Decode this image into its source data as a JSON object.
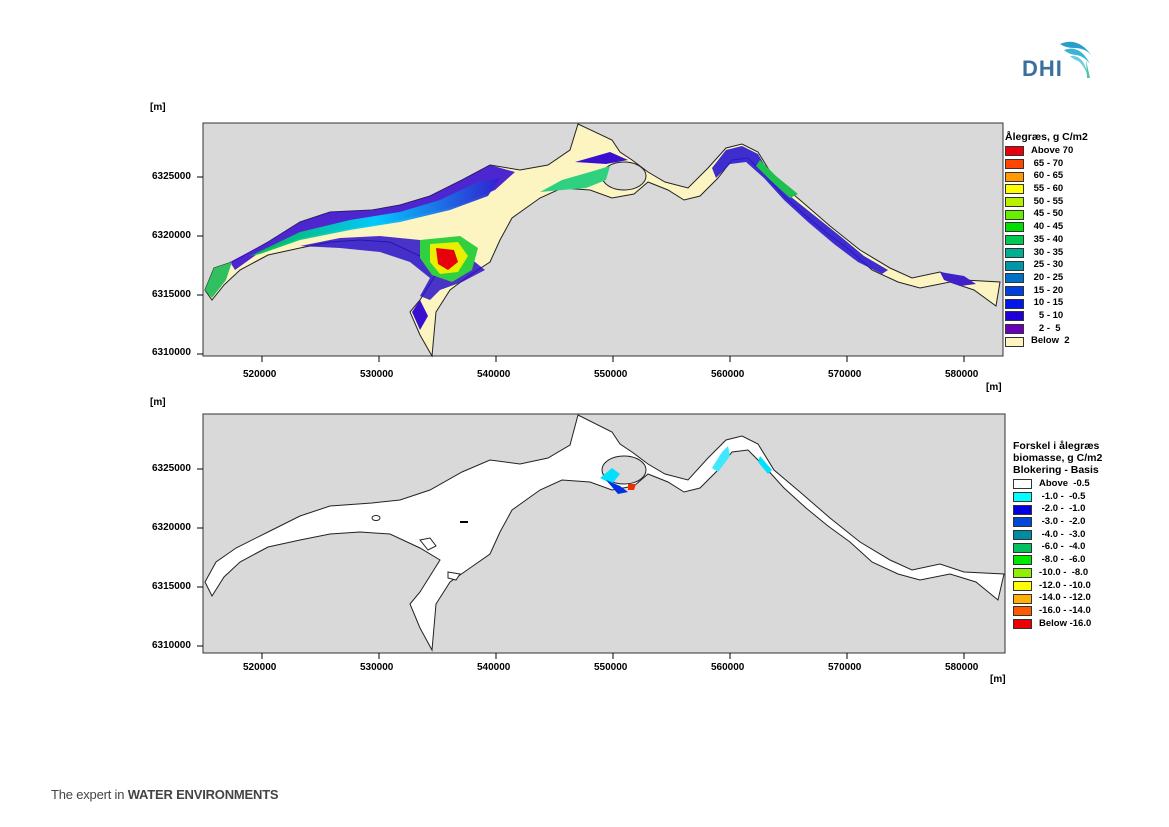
{
  "logo": {
    "text": "DHI"
  },
  "footer": {
    "prefix": "The expert in ",
    "emphasis": "WATER ENVIRONMENTS"
  },
  "map_top": {
    "y_unit": "[m]",
    "x_unit": "[m]",
    "y_ticks": [
      "6325000",
      "6320000",
      "6315000",
      "6310000"
    ],
    "x_ticks": [
      "520000",
      "530000",
      "540000",
      "550000",
      "560000",
      "570000",
      "580000"
    ],
    "legend": {
      "title": "Ålegræs, g C/m2",
      "items": [
        {
          "label": "Above 70",
          "color": "#e8000b"
        },
        {
          "label": " 65 - 70",
          "color": "#ff4500"
        },
        {
          "label": " 60 - 65",
          "color": "#ff9a00"
        },
        {
          "label": " 55 - 60",
          "color": "#ffff00"
        },
        {
          "label": " 50 - 55",
          "color": "#b8f000"
        },
        {
          "label": " 45 - 50",
          "color": "#66f000"
        },
        {
          "label": " 40 - 45",
          "color": "#00e000"
        },
        {
          "label": " 35 - 40",
          "color": "#00c850"
        },
        {
          "label": " 30 - 35",
          "color": "#00b090"
        },
        {
          "label": " 25 - 30",
          "color": "#0098a8"
        },
        {
          "label": " 20 - 25",
          "color": "#0070c8"
        },
        {
          "label": " 15 - 20",
          "color": "#0040e0"
        },
        {
          "label": " 10 - 15",
          "color": "#0018e8"
        },
        {
          "label": "   5 - 10",
          "color": "#2000d8"
        },
        {
          "label": "   2 -  5",
          "color": "#6a00b8"
        },
        {
          "label": "Below  2",
          "color": "#fcf5c2"
        }
      ]
    }
  },
  "map_bottom": {
    "y_unit": "[m]",
    "x_unit": "[m]",
    "y_ticks": [
      "6325000",
      "6320000",
      "6315000",
      "6310000"
    ],
    "x_ticks": [
      "520000",
      "530000",
      "540000",
      "550000",
      "560000",
      "570000",
      "580000"
    ],
    "legend": {
      "title_lines": [
        "Forskel i ålegræs",
        "biomasse, g C/m2",
        "Blokering - Basis"
      ],
      "items": [
        {
          "label": "Above  -0.5",
          "color": "#ffffff"
        },
        {
          "label": " -1.0 -  -0.5",
          "color": "#00ffff"
        },
        {
          "label": " -2.0 -  -1.0",
          "color": "#0000e0"
        },
        {
          "label": " -3.0 -  -2.0",
          "color": "#0048d8"
        },
        {
          "label": " -4.0 -  -3.0",
          "color": "#008ca0"
        },
        {
          "label": " -6.0 -  -4.0",
          "color": "#00c060"
        },
        {
          "label": " -8.0 -  -6.0",
          "color": "#00e800"
        },
        {
          "label": "-10.0 -  -8.0",
          "color": "#90f000"
        },
        {
          "label": "-12.0 - -10.0",
          "color": "#ffff00"
        },
        {
          "label": "-14.0 - -12.0",
          "color": "#ffb000"
        },
        {
          "label": "-16.0 - -14.0",
          "color": "#ff5a00"
        },
        {
          "label": "Below -16.0",
          "color": "#ee0000"
        }
      ]
    }
  },
  "colors": {
    "land": "#d9d9d9",
    "water_low": "#fcf5c2",
    "water_white": "#ffffff"
  }
}
